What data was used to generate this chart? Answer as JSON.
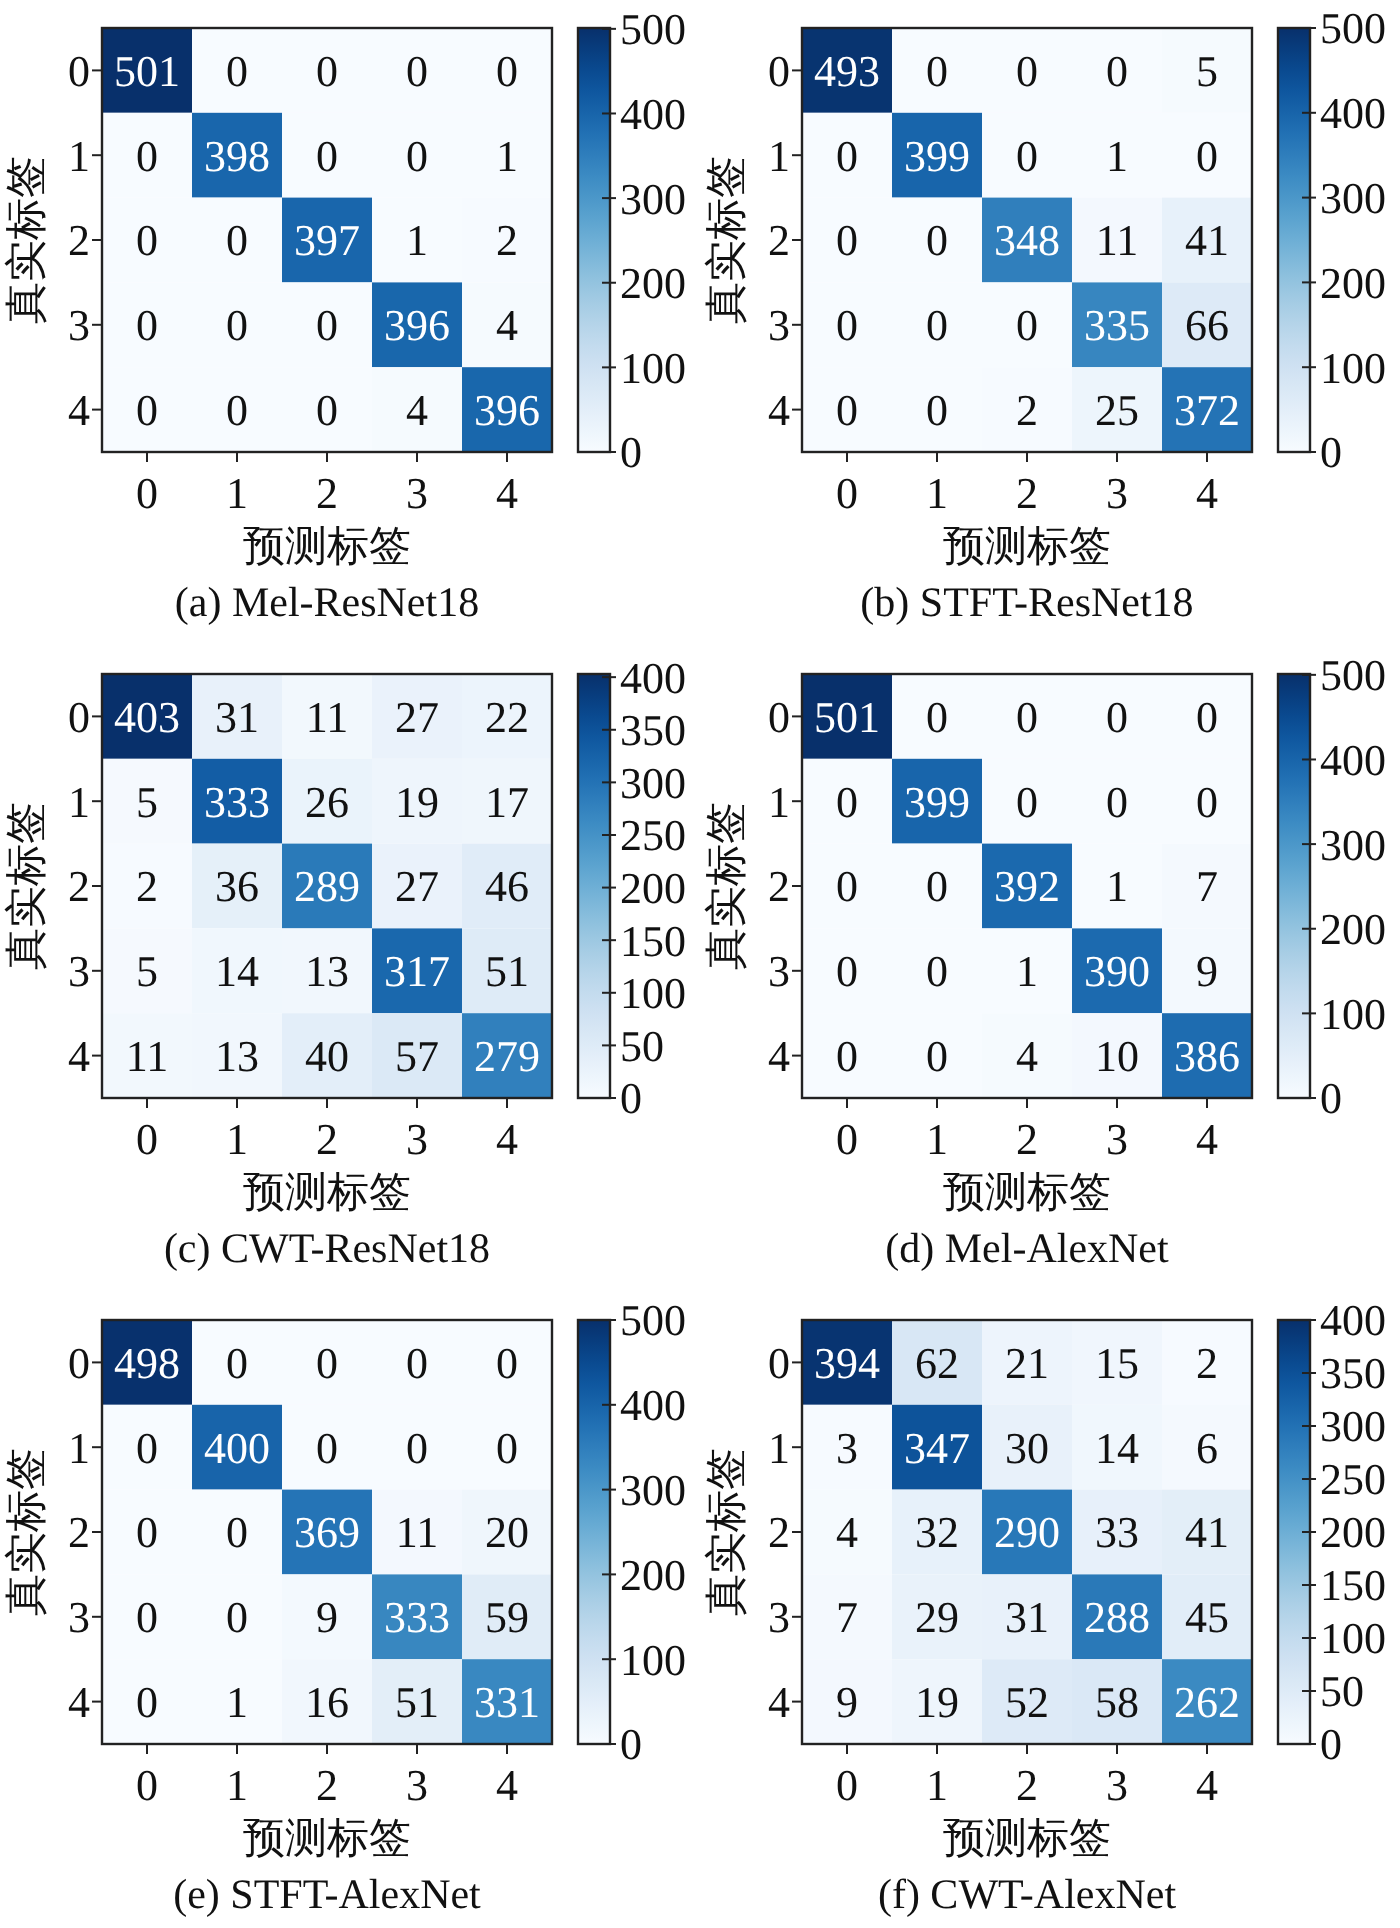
{
  "chart_data": [
    {
      "type": "heatmap",
      "title": "(a) Mel-ResNet18",
      "xlabel": "预测标签",
      "ylabel": "真实标签",
      "categories": [
        "0",
        "1",
        "2",
        "3",
        "4"
      ],
      "y_categories": [
        "0",
        "1",
        "2",
        "3",
        "4"
      ],
      "cells": [
        [
          501,
          0,
          0,
          0,
          0
        ],
        [
          0,
          398,
          0,
          0,
          1
        ],
        [
          0,
          0,
          397,
          1,
          2
        ],
        [
          0,
          0,
          0,
          396,
          4
        ],
        [
          0,
          0,
          0,
          4,
          396
        ]
      ],
      "clim": [
        0,
        501
      ],
      "cticks": [
        0,
        100,
        200,
        300,
        400,
        500
      ],
      "data_labels": true
    },
    {
      "type": "heatmap",
      "title": "(b) STFT-ResNet18",
      "xlabel": "预测标签",
      "ylabel": "真实标签",
      "categories": [
        "0",
        "1",
        "2",
        "3",
        "4"
      ],
      "y_categories": [
        "0",
        "1",
        "2",
        "3",
        "4"
      ],
      "cells": [
        [
          493,
          0,
          0,
          0,
          5
        ],
        [
          0,
          399,
          0,
          1,
          0
        ],
        [
          0,
          0,
          348,
          11,
          41
        ],
        [
          0,
          0,
          0,
          335,
          66
        ],
        [
          0,
          0,
          2,
          25,
          372
        ]
      ],
      "clim": [
        0,
        500
      ],
      "cticks": [
        0,
        100,
        200,
        300,
        400,
        500
      ],
      "data_labels": true
    },
    {
      "type": "heatmap",
      "title": "(c) CWT-ResNet18",
      "xlabel": "预测标签",
      "ylabel": "真实标签",
      "categories": [
        "0",
        "1",
        "2",
        "3",
        "4"
      ],
      "y_categories": [
        "0",
        "1",
        "2",
        "3",
        "4"
      ],
      "cells": [
        [
          403,
          31,
          11,
          27,
          22
        ],
        [
          5,
          333,
          26,
          19,
          17
        ],
        [
          2,
          36,
          289,
          27,
          46
        ],
        [
          5,
          14,
          13,
          317,
          51
        ],
        [
          11,
          13,
          40,
          57,
          279
        ]
      ],
      "clim": [
        0,
        403
      ],
      "cticks": [
        0,
        50,
        100,
        150,
        200,
        250,
        300,
        350,
        400
      ],
      "data_labels": true
    },
    {
      "type": "heatmap",
      "title": "(d) Mel-AlexNet",
      "xlabel": "预测标签",
      "ylabel": "真实标签",
      "categories": [
        "0",
        "1",
        "2",
        "3",
        "4"
      ],
      "y_categories": [
        "0",
        "1",
        "2",
        "3",
        "4"
      ],
      "cells": [
        [
          501,
          0,
          0,
          0,
          0
        ],
        [
          0,
          399,
          0,
          0,
          0
        ],
        [
          0,
          0,
          392,
          1,
          7
        ],
        [
          0,
          0,
          1,
          390,
          9
        ],
        [
          0,
          0,
          4,
          10,
          386
        ]
      ],
      "clim": [
        0,
        501
      ],
      "cticks": [
        0,
        100,
        200,
        300,
        400,
        500
      ],
      "data_labels": true
    },
    {
      "type": "heatmap",
      "title": "(e) STFT-AlexNet",
      "xlabel": "预测标签",
      "ylabel": "真实标签",
      "categories": [
        "0",
        "1",
        "2",
        "3",
        "4"
      ],
      "y_categories": [
        "0",
        "1",
        "2",
        "3",
        "4"
      ],
      "cells": [
        [
          498,
          0,
          0,
          0,
          0
        ],
        [
          0,
          400,
          0,
          0,
          0
        ],
        [
          0,
          0,
          369,
          11,
          20
        ],
        [
          0,
          0,
          9,
          333,
          59
        ],
        [
          0,
          1,
          16,
          51,
          331
        ]
      ],
      "clim": [
        0,
        500
      ],
      "cticks": [
        0,
        100,
        200,
        300,
        400,
        500
      ],
      "data_labels": true
    },
    {
      "type": "heatmap",
      "title": "(f) CWT-AlexNet",
      "xlabel": "预测标签",
      "ylabel": "真实标签",
      "categories": [
        "0",
        "1",
        "2",
        "3",
        "4"
      ],
      "y_categories": [
        "0",
        "1",
        "2",
        "3",
        "4"
      ],
      "cells": [
        [
          394,
          62,
          21,
          15,
          2
        ],
        [
          3,
          347,
          30,
          14,
          6
        ],
        [
          4,
          32,
          290,
          33,
          41
        ],
        [
          7,
          29,
          31,
          288,
          45
        ],
        [
          9,
          19,
          52,
          58,
          262
        ]
      ],
      "clim": [
        0,
        400
      ],
      "cticks": [
        0,
        50,
        100,
        150,
        200,
        250,
        300,
        350,
        400
      ],
      "data_labels": true
    }
  ]
}
